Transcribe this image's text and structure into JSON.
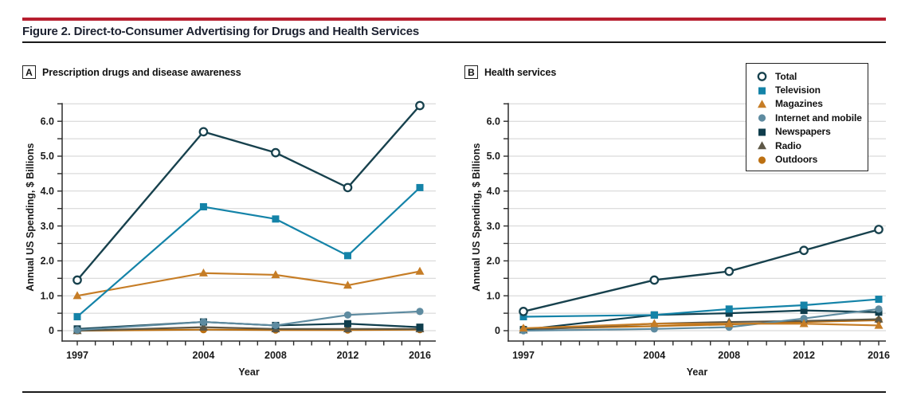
{
  "figure": {
    "title": "Figure 2. Direct-to-Consumer Advertising for Drugs and Health Services",
    "accent_color": "#B71E2F",
    "rule_color": "#1a1a1a"
  },
  "panels": [
    {
      "tag": "A",
      "label": "Prescription drugs and disease awareness"
    },
    {
      "tag": "B",
      "label": "Health services"
    }
  ],
  "legend": {
    "items": [
      {
        "label": "Total",
        "marker": "open-circle",
        "color": "#17414D"
      },
      {
        "label": "Television",
        "marker": "square",
        "color": "#1483A8"
      },
      {
        "label": "Magazines",
        "marker": "triangle",
        "color": "#C67D26"
      },
      {
        "label": "Internet and mobile",
        "marker": "circle",
        "color": "#5E8BA0"
      },
      {
        "label": "Newspapers",
        "marker": "square",
        "color": "#0F3D4C"
      },
      {
        "label": "Radio",
        "marker": "triangle",
        "color": "#5D5746"
      },
      {
        "label": "Outdoors",
        "marker": "circle",
        "color": "#BC7012"
      }
    ]
  },
  "chart_data": [
    {
      "type": "line",
      "panel": "A",
      "title": "Prescription drugs and disease awareness",
      "xlabel": "Year",
      "ylabel": "Annual US Spending, $ Billions",
      "x": [
        1997,
        2004,
        2008,
        2012,
        2016
      ],
      "xlim": [
        1997,
        2016
      ],
      "ylim": [
        0,
        6.5
      ],
      "ytick_step": 0.5,
      "ytick_labels": [
        "0",
        "1.0",
        "2.0",
        "3.0",
        "4.0",
        "5.0",
        "6.0"
      ],
      "grid": true,
      "legend_position": "outside-top-right",
      "series": [
        {
          "name": "Total",
          "marker": "open-circle",
          "color": "#17414D",
          "values": [
            1.45,
            5.7,
            5.1,
            4.1,
            6.45
          ]
        },
        {
          "name": "Television",
          "marker": "square",
          "color": "#1483A8",
          "values": [
            0.4,
            3.55,
            3.2,
            2.15,
            4.1
          ]
        },
        {
          "name": "Magazines",
          "marker": "triangle",
          "color": "#C67D26",
          "values": [
            1.0,
            1.65,
            1.6,
            1.3,
            1.7
          ]
        },
        {
          "name": "Internet and mobile",
          "marker": "circle",
          "color": "#5E8BA0",
          "values": [
            0.02,
            0.25,
            0.15,
            0.45,
            0.55
          ]
        },
        {
          "name": "Newspapers",
          "marker": "square",
          "color": "#0F3D4C",
          "values": [
            0.05,
            0.25,
            0.15,
            0.2,
            0.1
          ]
        },
        {
          "name": "Radio",
          "marker": "triangle",
          "color": "#5D5746",
          "values": [
            0.0,
            0.1,
            0.05,
            0.05,
            0.05
          ]
        },
        {
          "name": "Outdoors",
          "marker": "circle",
          "color": "#BC7012",
          "values": [
            0.0,
            0.03,
            0.02,
            0.02,
            0.03
          ]
        }
      ]
    },
    {
      "type": "line",
      "panel": "B",
      "title": "Health services",
      "xlabel": "Year",
      "ylabel": "Annual US Spending, $ Billions",
      "x": [
        1997,
        2004,
        2008,
        2012,
        2016
      ],
      "xlim": [
        1997,
        2016
      ],
      "ylim": [
        0,
        6.5
      ],
      "ytick_step": 0.5,
      "ytick_labels": [
        "0",
        "1.0",
        "2.0",
        "3.0",
        "4.0",
        "5.0",
        "6.0"
      ],
      "grid": true,
      "legend_position": "outside-top-right",
      "series": [
        {
          "name": "Total",
          "marker": "open-circle",
          "color": "#17414D",
          "values": [
            0.55,
            1.45,
            1.7,
            2.3,
            2.9
          ]
        },
        {
          "name": "Television",
          "marker": "square",
          "color": "#1483A8",
          "values": [
            0.4,
            0.45,
            0.62,
            0.73,
            0.9
          ]
        },
        {
          "name": "Magazines",
          "marker": "triangle",
          "color": "#C67D26",
          "values": [
            0.07,
            0.2,
            0.2,
            0.2,
            0.15
          ]
        },
        {
          "name": "Internet and mobile",
          "marker": "circle",
          "color": "#5E8BA0",
          "values": [
            0.0,
            0.05,
            0.1,
            0.35,
            0.62
          ]
        },
        {
          "name": "Newspapers",
          "marker": "square",
          "color": "#0F3D4C",
          "values": [
            0.03,
            0.45,
            0.5,
            0.58,
            0.53
          ]
        },
        {
          "name": "Radio",
          "marker": "triangle",
          "color": "#5D5746",
          "values": [
            0.02,
            0.2,
            0.25,
            0.28,
            0.33
          ]
        },
        {
          "name": "Outdoors",
          "marker": "circle",
          "color": "#BC7012",
          "values": [
            0.05,
            0.13,
            0.18,
            0.25,
            0.3
          ]
        }
      ]
    }
  ]
}
